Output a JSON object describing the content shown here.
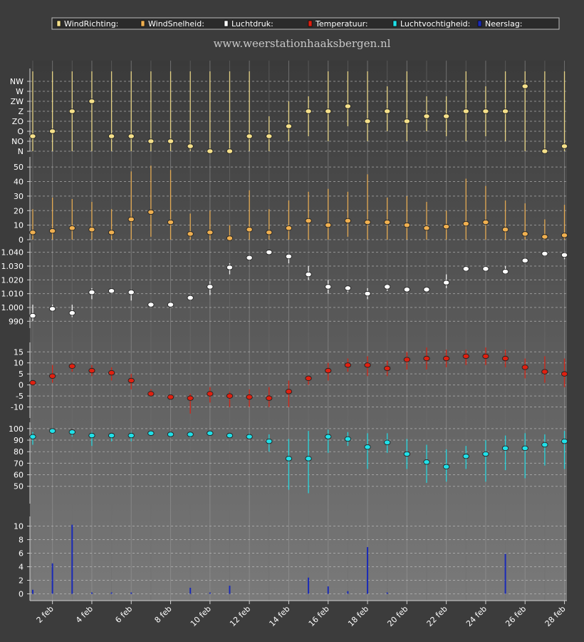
{
  "chart_data": {
    "type": "scatter",
    "subtitle": "www.weerstationhaaksbergen.nl",
    "legend": {
      "position": "top",
      "items": [
        {
          "name": "WindRichting:",
          "color": "#f5e08a"
        },
        {
          "name": "WindSnelheid:",
          "color": "#f0b050"
        },
        {
          "name": "Luchtdruk:",
          "color": "#ffffff"
        },
        {
          "name": "Temperatuur:",
          "color": "#e02010"
        },
        {
          "name": "Luchtvochtigheid:",
          "color": "#20e0e8"
        },
        {
          "name": "Neerslag:",
          "color": "#1a2ab8"
        }
      ]
    },
    "grid": true,
    "days": [
      1,
      2,
      3,
      4,
      5,
      6,
      7,
      8,
      9,
      10,
      11,
      12,
      13,
      14,
      15,
      16,
      17,
      18,
      19,
      20,
      21,
      22,
      23,
      24,
      25,
      26,
      27,
      28
    ],
    "x_tick_labels": [
      "2 feb",
      "4 feb",
      "6 feb",
      "8 feb",
      "10 feb",
      "12 feb",
      "14 feb",
      "16 feb",
      "18 feb",
      "20 feb",
      "22 feb",
      "24 feb",
      "26 feb",
      "28 feb"
    ],
    "x_tick_days": [
      2,
      4,
      6,
      8,
      10,
      12,
      14,
      16,
      18,
      20,
      22,
      24,
      26,
      28
    ],
    "panels": [
      {
        "name": "WindRichting",
        "kind": "range_marker",
        "color": "#f5e08a",
        "range_color": "#f5e08a",
        "ylim": [
          0,
          8
        ],
        "y_ticks": [
          0,
          1,
          2,
          3,
          4,
          5,
          6,
          7
        ],
        "y_tick_labels": [
          "N",
          "NO",
          "O",
          "ZO",
          "Z",
          "ZW",
          "W",
          "NW"
        ],
        "values": [
          1.5,
          2,
          4,
          5,
          1.5,
          1.5,
          1,
          1,
          0.5,
          0,
          0,
          1.5,
          1.5,
          2.5,
          4,
          4,
          4.5,
          3,
          4,
          3,
          3.5,
          3.5,
          4,
          4,
          4,
          6.5,
          0,
          0.5
        ],
        "low": [
          0,
          0,
          0,
          0,
          0,
          0,
          0,
          0,
          0,
          0,
          0,
          0,
          0,
          1,
          1.5,
          1,
          2.5,
          1,
          2,
          1,
          2,
          1.5,
          1,
          1.5,
          1,
          0,
          0,
          0
        ],
        "high": [
          8,
          8,
          8,
          8,
          8,
          8,
          8,
          8,
          8,
          8,
          8,
          8,
          3.5,
          5,
          5.5,
          8,
          8,
          8,
          6.5,
          8,
          5.5,
          5.5,
          8,
          6.5,
          8,
          8,
          8,
          8
        ]
      },
      {
        "name": "WindSnelheid",
        "kind": "range_marker",
        "color": "#f0b050",
        "range_color": "#f0b050",
        "ylim": [
          0,
          55
        ],
        "y_ticks": [
          0,
          10,
          20,
          30,
          40,
          50
        ],
        "y_tick_labels": [
          "0",
          "10",
          "20",
          "30",
          "40",
          "50"
        ],
        "values": [
          5,
          6,
          8,
          7,
          5,
          14,
          19,
          12,
          4,
          5,
          1,
          7,
          5,
          8,
          13,
          10,
          13,
          12,
          12,
          10,
          8,
          9,
          11,
          12,
          7,
          4,
          2,
          3
        ],
        "low": [
          0,
          0,
          0,
          0,
          0,
          0,
          2,
          0,
          0,
          0,
          0,
          0,
          0,
          0,
          0,
          0,
          2,
          0,
          0,
          0,
          0,
          0,
          0,
          0,
          0,
          0,
          0,
          0
        ],
        "high": [
          21,
          29,
          28,
          26,
          21,
          47,
          51,
          48,
          18,
          20,
          10,
          34,
          21,
          27,
          33,
          35,
          33,
          45,
          29,
          30,
          26,
          20,
          42,
          37,
          27,
          25,
          14,
          24
        ]
      },
      {
        "name": "Luchtdruk",
        "kind": "range_marker",
        "color": "#ffffff",
        "range_color": "#ffffff",
        "ylim": [
          985,
          1045
        ],
        "y_ticks": [
          990,
          1000,
          1010,
          1020,
          1030,
          1040
        ],
        "y_tick_labels": [
          "990",
          "1.000",
          "1.010",
          "1.020",
          "1.030",
          "1.040"
        ],
        "values": [
          994,
          999,
          996,
          1011,
          1012,
          1011,
          1002,
          1002,
          1007,
          1015,
          1029,
          1036,
          1040,
          1037,
          1024,
          1015,
          1014,
          1010,
          1015,
          1013,
          1013,
          1018,
          1028,
          1028,
          1026,
          1034,
          1039,
          1038
        ],
        "low": [
          990,
          997,
          993,
          1006,
          1010,
          1005,
          1000,
          1001,
          1005,
          1009,
          1024,
          1034,
          1039,
          1032,
          1020,
          1010,
          1011,
          1006,
          1012,
          1011,
          1011,
          1014,
          1026,
          1026,
          1024,
          1032,
          1037,
          1035
        ],
        "high": [
          1002,
          1002,
          1002,
          1014,
          1014,
          1013,
          1004,
          1004,
          1009,
          1019,
          1032,
          1038,
          1041,
          1039,
          1030,
          1020,
          1016,
          1014,
          1017,
          1015,
          1015,
          1024,
          1030,
          1030,
          1030,
          1036,
          1041,
          1039
        ]
      },
      {
        "name": "Temperatuur",
        "kind": "range_marker",
        "color": "#e02010",
        "range_color": "#e02010",
        "ylim": [
          -15,
          18
        ],
        "y_ticks": [
          -10,
          -5,
          0,
          5,
          10,
          15
        ],
        "y_tick_labels": [
          "-10",
          "-5",
          "0",
          "5",
          "10",
          "15"
        ],
        "values": [
          1,
          4,
          8.5,
          6.5,
          5.5,
          2,
          -4,
          -5.5,
          -6,
          -4,
          -5,
          -5.5,
          -6,
          -3,
          3,
          6.5,
          9,
          9,
          7.5,
          11.5,
          12,
          12,
          13,
          13,
          12,
          8,
          6,
          5
        ],
        "low": [
          0,
          1,
          6,
          4,
          2,
          -2,
          -5,
          -6.5,
          -13,
          -8,
          -10,
          -10,
          -10,
          -10,
          0,
          2,
          6,
          4,
          4,
          7,
          7,
          8,
          9,
          9,
          8,
          3,
          1,
          -1
        ],
        "high": [
          2,
          9,
          10,
          9,
          8,
          5,
          -2,
          -5,
          -4,
          -1,
          -3,
          -2,
          -1,
          2,
          4,
          10,
          12,
          13,
          11,
          15,
          17,
          16,
          16,
          17,
          16,
          12,
          13,
          12
        ]
      },
      {
        "name": "Luchtvochtigheid",
        "kind": "range_marker",
        "color": "#20e0e8",
        "range_color": "#20e0e8",
        "ylim": [
          35,
          103
        ],
        "y_ticks": [
          50,
          60,
          70,
          80,
          90,
          100
        ],
        "y_tick_labels": [
          "50",
          "60",
          "70",
          "80",
          "90",
          "100"
        ],
        "values": [
          93,
          98,
          97,
          94,
          94,
          94,
          96,
          95,
          95,
          96,
          94,
          93,
          89,
          74,
          74,
          93,
          91,
          84,
          88,
          78,
          71,
          67,
          76,
          78,
          83,
          83,
          86,
          89
        ],
        "low": [
          86,
          96,
          93,
          85,
          89,
          89,
          95,
          93,
          92,
          94,
          92,
          91,
          80,
          47,
          44,
          79,
          85,
          65,
          79,
          65,
          53,
          54,
          65,
          54,
          64,
          57,
          68,
          65
        ],
        "high": [
          97,
          99,
          99,
          97,
          96,
          97,
          97,
          97,
          97,
          98,
          96,
          96,
          95,
          91,
          98,
          99,
          97,
          96,
          96,
          91,
          86,
          82,
          85,
          90,
          94,
          96,
          95,
          98
        ]
      },
      {
        "name": "Neerslag",
        "kind": "bar",
        "color": "#1a2ab8",
        "ylim": [
          -1,
          11
        ],
        "y_ticks": [
          0,
          2,
          4,
          6,
          8,
          10
        ],
        "y_tick_labels": [
          "0",
          "2",
          "4",
          "6",
          "8",
          "10"
        ],
        "values": [
          0.6,
          4.5,
          10.2,
          0.2,
          0.2,
          0.2,
          0,
          0,
          0.9,
          0.2,
          1.2,
          0,
          0,
          0,
          2.4,
          1.1,
          0.4,
          6.9,
          0.2,
          0,
          0,
          0,
          0,
          0,
          5.9,
          0,
          0,
          0
        ]
      }
    ]
  }
}
